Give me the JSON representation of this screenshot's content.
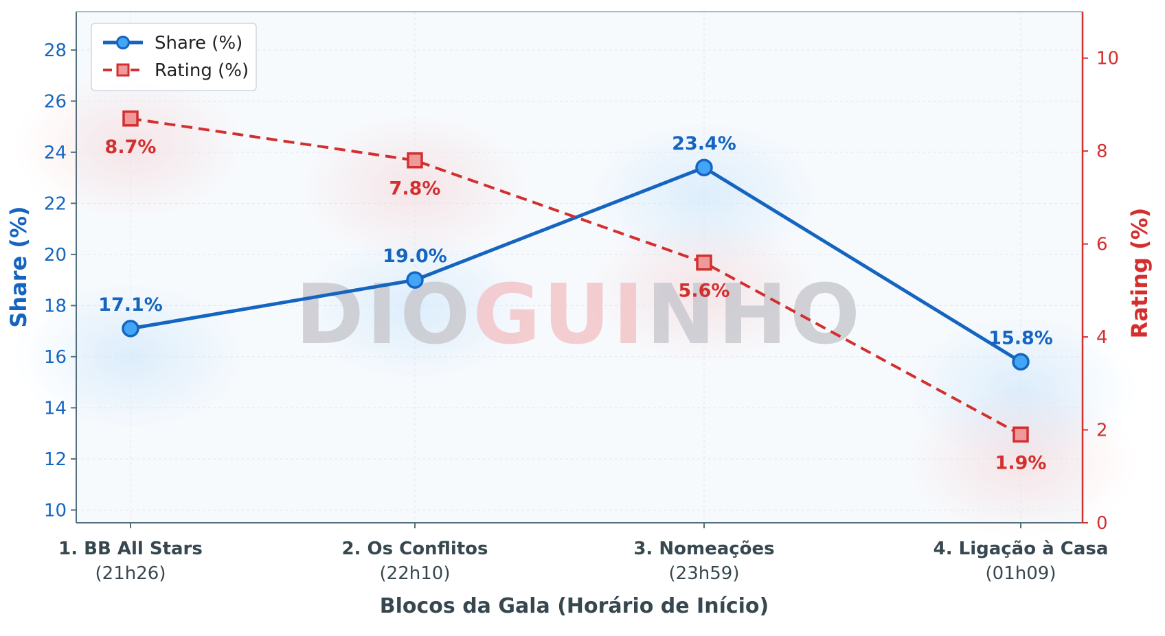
{
  "chart_data": {
    "type": "line",
    "categories": [
      "1. BB All Stars",
      "2. Os Conflitos",
      "3. Nomeações",
      "4. Ligação à Casa"
    ],
    "category_times": [
      "(21h26)",
      "(22h10)",
      "(23h59)",
      "(01h09)"
    ],
    "xlabel": "Blocos da Gala (Horário de Início)",
    "ylabel_left": "Share (%)",
    "ylabel_right": "Rating (%)",
    "ylim_left": [
      9.5,
      29.5
    ],
    "ylim_right": [
      0,
      11
    ],
    "yticks_left": [
      10,
      12,
      14,
      16,
      18,
      20,
      22,
      24,
      26,
      28
    ],
    "yticks_right": [
      0,
      2,
      4,
      6,
      8,
      10
    ],
    "series": [
      {
        "name": "Share (%)",
        "axis": "left",
        "values": [
          17.1,
          19.0,
          23.4,
          15.8
        ],
        "labels": [
          "17.1%",
          "19.0%",
          "23.4%",
          "15.8%"
        ],
        "color": "#1565c0",
        "marker": "circle",
        "line_style": "solid"
      },
      {
        "name": "Rating (%)",
        "axis": "right",
        "values": [
          8.7,
          7.8,
          5.6,
          1.9
        ],
        "labels": [
          "8.7%",
          "7.8%",
          "5.6%",
          "1.9%"
        ],
        "color": "#d32f2f",
        "marker": "square",
        "line_style": "dashed"
      }
    ],
    "legend_position": "top-left",
    "grid": true,
    "watermark": [
      "DIO",
      "GUI",
      "NHO"
    ],
    "watermark_colors": [
      "#c9c9cf",
      "#f2c4c8",
      "#c9c9cf"
    ]
  }
}
